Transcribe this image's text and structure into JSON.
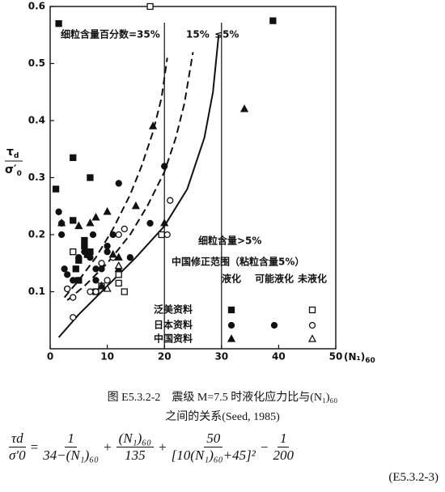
{
  "chart_data": {
    "type": "scatter",
    "xlabel": "(N₁)",
    "xlabel_sub": "60",
    "ylabel_top": "τ",
    "ylabel_top_sub": "d",
    "ylabel_bottom": "σ′",
    "ylabel_bottom_sub": "0",
    "xlim": [
      0,
      50
    ],
    "ylim": [
      0,
      0.6
    ],
    "xticks": [
      0,
      10,
      20,
      30,
      40,
      50
    ],
    "yticks": [
      0.1,
      0.2,
      0.3,
      0.4,
      0.5,
      0.6
    ],
    "xgrid": [
      20,
      30
    ],
    "curves": [
      {
        "label": "细粒含量百分数=35%",
        "dashed": true,
        "x": [
          2.5,
          5,
          8,
          11,
          14,
          16,
          18,
          19.5,
          20.5
        ],
        "y": [
          0.09,
          0.12,
          0.16,
          0.21,
          0.27,
          0.32,
          0.38,
          0.44,
          0.51
        ]
      },
      {
        "label": "15%",
        "dashed": true,
        "x": [
          3,
          6,
          10,
          14,
          17,
          20,
          22,
          23.5,
          24.5,
          25
        ],
        "y": [
          0.085,
          0.11,
          0.15,
          0.2,
          0.25,
          0.31,
          0.37,
          0.43,
          0.49,
          0.52
        ]
      },
      {
        "label": "≤5%",
        "dashed": false,
        "x": [
          1.5,
          5,
          10,
          15,
          20,
          24,
          27,
          28.5,
          29.5
        ],
        "y": [
          0.02,
          0.06,
          0.11,
          0.16,
          0.215,
          0.28,
          0.37,
          0.45,
          0.55
        ]
      }
    ],
    "legend": {
      "title": "细粒含量>5%",
      "subtitle": "中国修正范围（粘粒含量5%）",
      "columns": [
        "液化",
        "可能液化",
        "未液化"
      ],
      "rows": [
        "泛美资料",
        "日本资料",
        "中国资料"
      ]
    },
    "series": [
      {
        "row": 0,
        "column": 0,
        "marker": "square",
        "filled": true,
        "x": [
          1.5,
          39,
          1,
          4,
          7,
          4,
          6,
          6,
          5,
          6.5,
          7,
          8,
          5,
          4.5
        ],
        "y": [
          0.57,
          0.575,
          0.28,
          0.335,
          0.3,
          0.225,
          0.19,
          0.18,
          0.155,
          0.165,
          0.17,
          0.1,
          0.12,
          0.14
        ]
      },
      {
        "row": 0,
        "column": 2,
        "marker": "square",
        "filled": false,
        "x": [
          17.5,
          9,
          12,
          13,
          4,
          12,
          19.5
        ],
        "y": [
          0.6,
          0.11,
          0.115,
          0.1,
          0.17,
          0.13,
          0.2
        ]
      },
      {
        "row": 1,
        "column": 0,
        "marker": "circle",
        "filled": true,
        "x": [
          1.5,
          2,
          2.5,
          3,
          4,
          5,
          6,
          7,
          8,
          9,
          8,
          11,
          10,
          12,
          17.5,
          20,
          3,
          7.5
        ],
        "y": [
          0.24,
          0.2,
          0.14,
          0.13,
          0.12,
          0.16,
          0.17,
          0.16,
          0.14,
          0.14,
          0.12,
          0.2,
          0.17,
          0.29,
          0.22,
          0.32,
          0.105,
          0.2
        ]
      },
      {
        "row": 1,
        "column": 1,
        "marker": "circle",
        "filled": true,
        "x": [
          14,
          10
        ],
        "y": [
          0.16,
          0.18
        ]
      },
      {
        "row": 1,
        "column": 2,
        "marker": "circle",
        "filled": false,
        "x": [
          2,
          3,
          4,
          4,
          7,
          8,
          10,
          11,
          12,
          13,
          21,
          20.5,
          9
        ],
        "y": [
          0.22,
          0.105,
          0.09,
          0.055,
          0.1,
          0.1,
          0.12,
          0.16,
          0.2,
          0.21,
          0.26,
          0.2,
          0.15
        ]
      },
      {
        "row": 2,
        "column": 0,
        "marker": "triangle",
        "filled": true,
        "x": [
          2,
          5,
          7,
          8,
          10,
          12,
          15,
          18,
          34,
          20,
          9,
          11,
          12
        ],
        "y": [
          0.22,
          0.215,
          0.22,
          0.23,
          0.24,
          0.16,
          0.25,
          0.39,
          0.42,
          0.22,
          0.11,
          0.165,
          0.14
        ]
      },
      {
        "row": 2,
        "column": 2,
        "marker": "triangle",
        "filled": false,
        "x": [
          10,
          12
        ],
        "y": [
          0.105,
          0.145
        ]
      }
    ]
  },
  "caption": {
    "line1": "图 E5.3.2-2　震级 M=7.5 时液化应力比与(N₁)₆₀",
    "line2": "之间的关系(Seed, 1985)"
  },
  "formula": {
    "lhs_num": "τd",
    "lhs_den": "σ′0",
    "ops": [
      "=",
      "+",
      "+",
      "−"
    ],
    "t1_num": "1",
    "t1_den": "34−(N₁)₆₀",
    "t2_num": "(N₁)₆₀",
    "t2_den": "135",
    "t3_num": "50",
    "t3_den": "[10(N₁)₆₀+45]²",
    "t4_num": "1",
    "t4_den": "200",
    "number": "(E5.3.2-3)"
  }
}
